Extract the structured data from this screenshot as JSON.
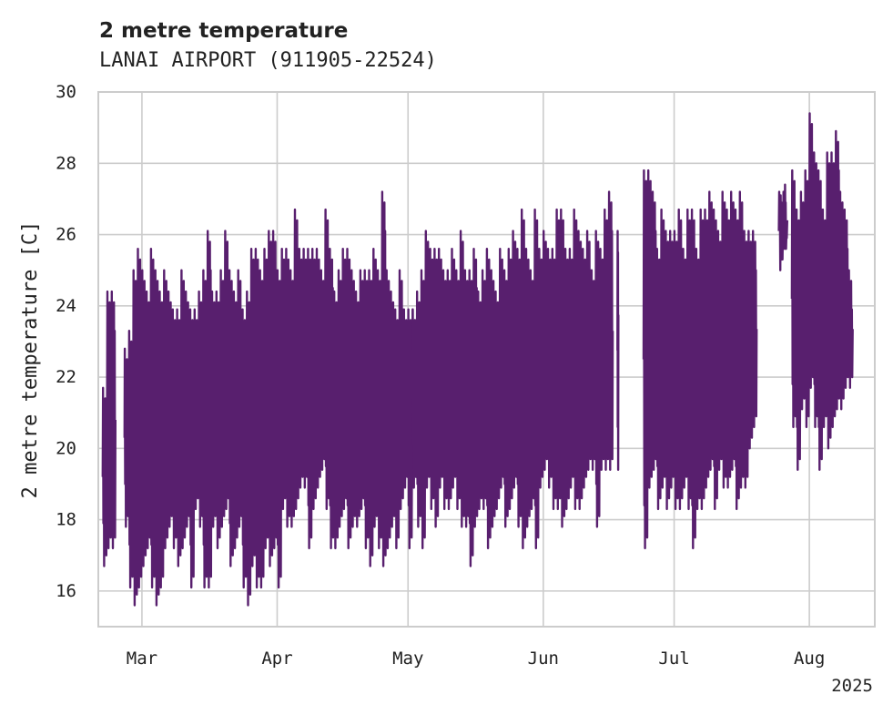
{
  "chart_data": {
    "type": "line",
    "title": "2 metre temperature",
    "subtitle": "LANAI AIRPORT (911905-22524)",
    "ylabel": "2 metre temperature [C]",
    "xlabel": "",
    "year_label": "2025",
    "ylim": [
      15,
      30
    ],
    "xlim": [
      "2025-02-19",
      "2025-08-16"
    ],
    "yticks": [
      16,
      18,
      20,
      22,
      24,
      26,
      28,
      30
    ],
    "xticks": [
      {
        "date": "2025-03-01",
        "label": "Mar"
      },
      {
        "date": "2025-04-01",
        "label": "Apr"
      },
      {
        "date": "2025-05-01",
        "label": "May"
      },
      {
        "date": "2025-06-01",
        "label": "Jun"
      },
      {
        "date": "2025-07-01",
        "label": "Jul"
      },
      {
        "date": "2025-08-01",
        "label": "Aug"
      }
    ],
    "grid": true,
    "color": "#581f6e",
    "series": [
      {
        "segments": [
          {
            "start": "2025-02-20",
            "end": "2025-02-22",
            "low": [
              16.7,
              17.2,
              17.2
            ],
            "high": [
              21.7,
              24.4,
              24.4
            ]
          },
          {
            "start": "2025-02-25",
            "end": "2025-05-02",
            "low": [
              17.8,
              16.1,
              15.6,
              16.1,
              16.7,
              17.2,
              16.1,
              15.6,
              16.1,
              17.2,
              17.8,
              17.2,
              16.7,
              17.2,
              17.8,
              16.1,
              18.3,
              17.8,
              16.1,
              16.1,
              17.8,
              17.2,
              17.8,
              18.3,
              16.7,
              17.2,
              17.8,
              16.1,
              15.6,
              16.7,
              16.1,
              16.1,
              17.2,
              16.7,
              17.2,
              16.1,
              18.3,
              17.8,
              17.8,
              18.3,
              18.9,
              18.9,
              17.2,
              18.3,
              18.9,
              19.4,
              18.3,
              17.2,
              17.2,
              17.8,
              18.3,
              17.2,
              17.8,
              17.8,
              18.3,
              17.2,
              16.7,
              17.8,
              17.2,
              16.7,
              17.2,
              17.8,
              17.2,
              18.3,
              18.9,
              17.2,
              18.9
            ],
            "high": [
              22.8,
              23.3,
              25.0,
              25.6,
              25.0,
              24.4,
              25.6,
              25.0,
              24.4,
              25.0,
              24.4,
              23.9,
              23.9,
              25.0,
              24.4,
              23.9,
              23.9,
              24.4,
              25.0,
              26.1,
              24.4,
              24.4,
              25.0,
              26.1,
              25.0,
              24.4,
              25.0,
              23.9,
              24.4,
              25.6,
              25.6,
              25.0,
              25.6,
              26.1,
              26.1,
              25.0,
              25.6,
              25.6,
              25.0,
              26.7,
              25.6,
              25.6,
              25.6,
              25.6,
              25.6,
              25.0,
              26.7,
              25.6,
              24.4,
              25.0,
              25.6,
              25.6,
              25.0,
              24.4,
              25.0,
              25.0,
              25.0,
              25.6,
              25.0,
              27.2,
              25.0,
              24.4,
              23.9,
              25.0,
              23.9,
              23.9,
              23.9
            ]
          },
          {
            "start": "2025-05-02",
            "end": "2025-06-16",
            "low": [
              18.9,
              17.8,
              17.2,
              18.9,
              18.3,
              17.8,
              18.9,
              18.3,
              18.3,
              18.9,
              18.3,
              17.8,
              17.8,
              16.7,
              17.8,
              18.3,
              18.3,
              17.2,
              17.8,
              18.3,
              18.9,
              17.8,
              18.3,
              18.9,
              17.8,
              17.2,
              17.8,
              18.3,
              17.2,
              18.9,
              19.4,
              18.9,
              18.3,
              18.3,
              17.8,
              18.3,
              18.9,
              18.3,
              18.3,
              18.9,
              19.4,
              19.4,
              17.8,
              19.4,
              19.4,
              19.4
            ],
            "high": [
              23.9,
              24.4,
              25.0,
              26.1,
              25.6,
              25.6,
              25.6,
              25.0,
              25.0,
              25.6,
              25.0,
              26.1,
              25.0,
              25.0,
              25.6,
              24.4,
              25.0,
              25.6,
              25.0,
              24.4,
              25.6,
              25.0,
              25.6,
              26.1,
              25.6,
              26.7,
              25.6,
              25.0,
              26.7,
              25.6,
              26.1,
              25.6,
              25.6,
              26.7,
              26.7,
              25.6,
              25.6,
              26.7,
              26.1,
              25.6,
              26.1,
              25.0,
              26.1,
              25.6,
              26.7,
              27.2
            ]
          },
          {
            "start": "2025-06-18",
            "end": "2025-06-18",
            "low": [
              19.4
            ],
            "high": [
              26.1
            ]
          },
          {
            "start": "2025-06-24",
            "end": "2025-07-19",
            "low": [
              17.2,
              18.9,
              19.4,
              18.3,
              18.9,
              18.3,
              18.9,
              18.3,
              18.3,
              18.9,
              18.3,
              17.2,
              18.3,
              18.3,
              18.9,
              19.4,
              18.3,
              19.4,
              18.9,
              18.9,
              19.4,
              18.3,
              18.9,
              18.9,
              20.0,
              20.6
            ],
            "high": [
              27.8,
              27.8,
              27.2,
              25.6,
              26.7,
              26.1,
              26.1,
              26.1,
              26.7,
              25.6,
              26.7,
              26.7,
              25.6,
              26.7,
              26.7,
              27.2,
              26.7,
              26.1,
              27.2,
              26.7,
              27.2,
              26.7,
              27.2,
              26.1,
              26.1,
              26.1
            ]
          },
          {
            "start": "2025-07-25",
            "end": "2025-07-26",
            "low": [
              25.0,
              25.6
            ],
            "high": [
              27.2,
              27.2
            ]
          },
          {
            "start": "2025-07-28",
            "end": "2025-08-10",
            "low": [
              20.6,
              19.4,
              21.1,
              20.6,
              21.7,
              20.6,
              19.4,
              20.6,
              20.0,
              20.6,
              21.1,
              21.1,
              21.7,
              21.7
            ],
            "high": [
              27.8,
              26.7,
              27.2,
              27.8,
              29.4,
              28.3,
              27.8,
              26.7,
              28.3,
              28.3,
              28.9,
              27.2,
              26.7,
              25.0
            ]
          }
        ]
      }
    ]
  }
}
